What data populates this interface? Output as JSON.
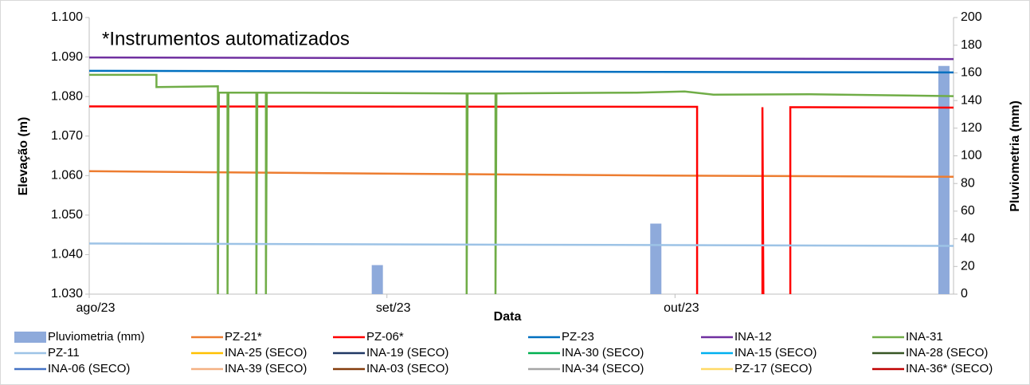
{
  "chart_data": {
    "type": "line",
    "annotation": "*Instrumentos automatizados",
    "x_label": "Data",
    "y_label": "Elevação (m)",
    "y2_label": "Pluviometria (mm)",
    "xlim": [
      0,
      90
    ],
    "xticks": [
      {
        "value": 0,
        "label": "ago/23"
      },
      {
        "value": 31,
        "label": "set/23"
      },
      {
        "value": 61,
        "label": "out/23"
      }
    ],
    "ylim": [
      1030,
      1100
    ],
    "yticks": [
      {
        "value": 1030,
        "label": "1.030"
      },
      {
        "value": 1040,
        "label": "1.040"
      },
      {
        "value": 1050,
        "label": "1.050"
      },
      {
        "value": 1060,
        "label": "1.060"
      },
      {
        "value": 1070,
        "label": "1.070"
      },
      {
        "value": 1080,
        "label": "1.080"
      },
      {
        "value": 1090,
        "label": "1.090"
      },
      {
        "value": 1100,
        "label": "1.100"
      }
    ],
    "y2lim": [
      0,
      200
    ],
    "y2ticks": [
      0,
      20,
      40,
      60,
      80,
      100,
      120,
      140,
      160,
      180,
      200
    ],
    "series": [
      {
        "name": "Pluviometria (mm)",
        "type": "bar",
        "axis": "y2",
        "color": "#8eaadb",
        "x": [
          30,
          59,
          89
        ],
        "values": [
          21,
          51,
          165
        ]
      },
      {
        "name": "PZ-21*",
        "color": "#ed7d31",
        "x": [
          0,
          30,
          60,
          90
        ],
        "values": [
          1061.1,
          1060.5,
          1060.0,
          1059.7
        ]
      },
      {
        "name": "PZ-06*",
        "color": "#ff0000",
        "x": [
          0,
          63.3,
          63.3,
          null,
          70.1,
          70.1,
          70.2,
          null,
          73,
          73,
          90
        ],
        "values": [
          1077.5,
          1077.4,
          1030,
          null,
          1030,
          1077.3,
          1030,
          null,
          1030,
          1077.3,
          1077.2
        ]
      },
      {
        "name": "PZ-23",
        "color": "#0070c0",
        "x": [
          0,
          90
        ],
        "values": [
          1086.5,
          1086.1
        ]
      },
      {
        "name": "INA-12",
        "color": "#7030a0",
        "x": [
          0,
          90
        ],
        "values": [
          1089.9,
          1089.5
        ]
      },
      {
        "name": "INA-31",
        "color": "#70ad47",
        "x": [
          0,
          7,
          7,
          13.4,
          13.4,
          13.5,
          14.4,
          14.4,
          14.5,
          17.4,
          17.4,
          17.5,
          18.4,
          18.4,
          18.5,
          39.3,
          39.3,
          39.4,
          42.3,
          42.3,
          42.4,
          57,
          62,
          65,
          75,
          90
        ],
        "values": [
          1085.5,
          1085.5,
          1082.4,
          1082.6,
          1030,
          1081,
          1081,
          1030,
          1081,
          1081,
          1030,
          1081,
          1081,
          1030,
          1081,
          1080.8,
          1030,
          1080.8,
          1080.8,
          1030,
          1080.8,
          1081,
          1081.3,
          1080.5,
          1080.6,
          1080.1
        ]
      },
      {
        "name": "PZ-11",
        "color": "#9dc3e6",
        "x": [
          0,
          90
        ],
        "values": [
          1042.8,
          1042.2
        ]
      },
      {
        "name": "INA-25 (SECO)",
        "color": "#ffc000"
      },
      {
        "name": "INA-19 (SECO)",
        "color": "#203864"
      },
      {
        "name": "INA-30 (SECO)",
        "color": "#00b050"
      },
      {
        "name": "INA-15 (SECO)",
        "color": "#00b0f0"
      },
      {
        "name": "INA-28 (SECO)",
        "color": "#375623"
      },
      {
        "name": "INA-06 (SECO)",
        "color": "#4472c4"
      },
      {
        "name": "INA-39 (SECO)",
        "color": "#f4b183"
      },
      {
        "name": "INA-03 (SECO)",
        "color": "#843c0c"
      },
      {
        "name": "INA-34 (SECO)",
        "color": "#a5a5a5"
      },
      {
        "name": "PZ-17 (SECO)",
        "color": "#ffd966"
      },
      {
        "name": "INA-36* (SECO)",
        "color": "#c00000"
      }
    ]
  }
}
